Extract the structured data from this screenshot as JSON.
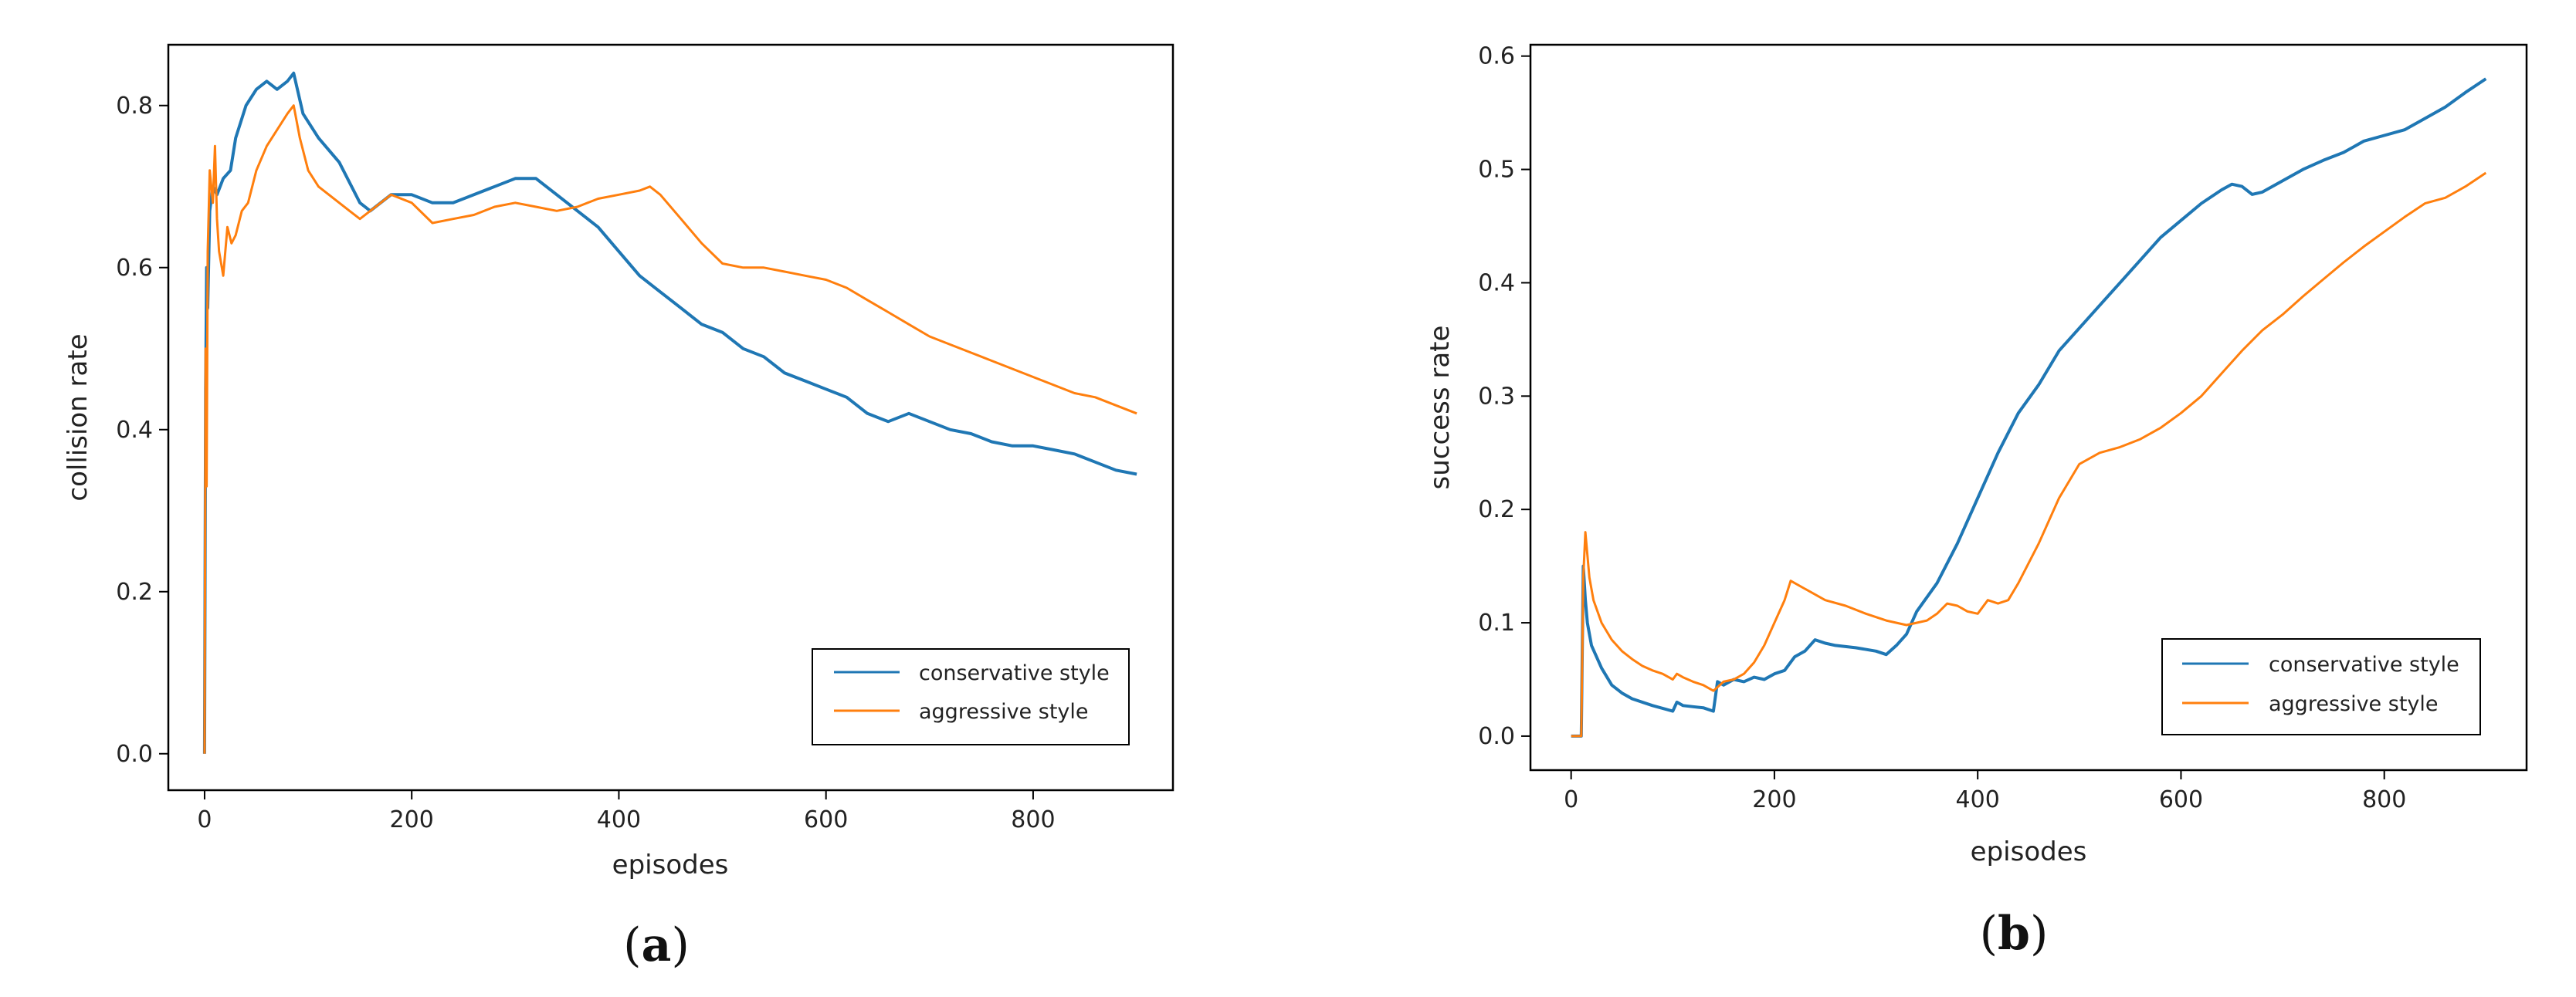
{
  "chart_data": [
    {
      "type": "line",
      "panel": "a",
      "caption": {
        "open": "(",
        "letter": "a",
        "close": ")"
      },
      "xlabel": "episodes",
      "ylabel": "collision rate",
      "xlim": [
        -35,
        935
      ],
      "ylim": [
        -0.045,
        0.875
      ],
      "xticks": [
        0,
        200,
        400,
        600,
        800
      ],
      "yticks": [
        0.0,
        0.2,
        0.4,
        0.6,
        0.8
      ],
      "ytick_labels": [
        "0.0",
        "0.2",
        "0.4",
        "0.6",
        "0.8"
      ],
      "grid": false,
      "legend_position": "lower-right",
      "series": [
        {
          "name": "conservative style",
          "color": "#1f77b4",
          "x": [
            0,
            1,
            2,
            3,
            5,
            8,
            12,
            18,
            25,
            30,
            40,
            50,
            60,
            70,
            80,
            86,
            95,
            110,
            130,
            150,
            160,
            180,
            200,
            220,
            240,
            260,
            280,
            300,
            320,
            340,
            360,
            380,
            400,
            420,
            440,
            460,
            480,
            500,
            520,
            540,
            560,
            580,
            600,
            620,
            640,
            660,
            680,
            700,
            720,
            740,
            760,
            780,
            800,
            820,
            840,
            860,
            880,
            900
          ],
          "y": [
            0.0,
            0.45,
            0.6,
            0.55,
            0.67,
            0.7,
            0.69,
            0.71,
            0.72,
            0.76,
            0.8,
            0.82,
            0.83,
            0.82,
            0.83,
            0.84,
            0.79,
            0.76,
            0.73,
            0.68,
            0.67,
            0.69,
            0.69,
            0.68,
            0.68,
            0.69,
            0.7,
            0.71,
            0.71,
            0.69,
            0.67,
            0.65,
            0.62,
            0.59,
            0.57,
            0.55,
            0.53,
            0.52,
            0.5,
            0.49,
            0.47,
            0.46,
            0.45,
            0.44,
            0.42,
            0.41,
            0.42,
            0.41,
            0.4,
            0.395,
            0.385,
            0.38,
            0.38,
            0.375,
            0.37,
            0.36,
            0.35,
            0.345
          ]
        },
        {
          "name": "aggressive style",
          "color": "#ff7f0e",
          "x": [
            0,
            1,
            2,
            3,
            5,
            8,
            10,
            12,
            14,
            18,
            22,
            26,
            30,
            36,
            42,
            50,
            60,
            70,
            80,
            86,
            92,
            100,
            110,
            120,
            130,
            140,
            150,
            160,
            170,
            180,
            200,
            220,
            240,
            260,
            280,
            300,
            320,
            340,
            360,
            380,
            400,
            420,
            430,
            440,
            460,
            480,
            500,
            520,
            540,
            560,
            580,
            600,
            620,
            640,
            660,
            680,
            700,
            720,
            740,
            760,
            780,
            800,
            820,
            840,
            860,
            880,
            900
          ],
          "y": [
            0.0,
            0.5,
            0.33,
            0.62,
            0.72,
            0.68,
            0.75,
            0.66,
            0.62,
            0.59,
            0.65,
            0.63,
            0.64,
            0.67,
            0.68,
            0.72,
            0.75,
            0.77,
            0.79,
            0.8,
            0.76,
            0.72,
            0.7,
            0.69,
            0.68,
            0.67,
            0.66,
            0.67,
            0.68,
            0.69,
            0.68,
            0.655,
            0.66,
            0.665,
            0.675,
            0.68,
            0.675,
            0.67,
            0.675,
            0.685,
            0.69,
            0.695,
            0.7,
            0.69,
            0.66,
            0.63,
            0.605,
            0.6,
            0.6,
            0.595,
            0.59,
            0.585,
            0.575,
            0.56,
            0.545,
            0.53,
            0.515,
            0.505,
            0.495,
            0.485,
            0.475,
            0.465,
            0.455,
            0.445,
            0.44,
            0.43,
            0.42
          ]
        }
      ]
    },
    {
      "type": "line",
      "panel": "b",
      "caption": {
        "open": "(",
        "letter": "b",
        "close": ")"
      },
      "xlabel": "episodes",
      "ylabel": "success rate",
      "xlim": [
        -40,
        940
      ],
      "ylim": [
        -0.03,
        0.61
      ],
      "xticks": [
        0,
        200,
        400,
        600,
        800
      ],
      "yticks": [
        0.0,
        0.1,
        0.2,
        0.3,
        0.4,
        0.5,
        0.6
      ],
      "ytick_labels": [
        "0.0",
        "0.1",
        "0.2",
        "0.3",
        "0.4",
        "0.5",
        "0.6"
      ],
      "grid": false,
      "legend_position": "lower-right",
      "series": [
        {
          "name": "conservative style",
          "color": "#1f77b4",
          "x": [
            0,
            5,
            10,
            12,
            14,
            16,
            20,
            30,
            40,
            50,
            60,
            80,
            100,
            104,
            110,
            120,
            130,
            140,
            144,
            150,
            160,
            170,
            180,
            190,
            200,
            210,
            220,
            230,
            240,
            250,
            260,
            280,
            300,
            310,
            320,
            330,
            340,
            360,
            380,
            400,
            420,
            440,
            460,
            480,
            500,
            520,
            540,
            560,
            580,
            600,
            620,
            640,
            650,
            660,
            670,
            680,
            700,
            720,
            740,
            760,
            780,
            800,
            820,
            840,
            860,
            880,
            900
          ],
          "y": [
            0.0,
            0.0,
            0.0,
            0.15,
            0.12,
            0.1,
            0.08,
            0.06,
            0.045,
            0.038,
            0.033,
            0.027,
            0.022,
            0.03,
            0.027,
            0.026,
            0.025,
            0.022,
            0.048,
            0.045,
            0.05,
            0.048,
            0.052,
            0.05,
            0.055,
            0.058,
            0.07,
            0.075,
            0.085,
            0.082,
            0.08,
            0.078,
            0.075,
            0.072,
            0.08,
            0.09,
            0.11,
            0.135,
            0.17,
            0.21,
            0.25,
            0.285,
            0.31,
            0.34,
            0.36,
            0.38,
            0.4,
            0.42,
            0.44,
            0.455,
            0.47,
            0.482,
            0.487,
            0.485,
            0.478,
            0.48,
            0.49,
            0.5,
            0.508,
            0.515,
            0.525,
            0.53,
            0.535,
            0.545,
            0.555,
            0.568,
            0.58
          ]
        },
        {
          "name": "aggressive style",
          "color": "#ff7f0e",
          "x": [
            0,
            5,
            10,
            12,
            14,
            16,
            18,
            22,
            30,
            40,
            50,
            60,
            70,
            80,
            90,
            100,
            104,
            110,
            120,
            130,
            140,
            150,
            160,
            170,
            180,
            190,
            200,
            210,
            216,
            230,
            250,
            270,
            290,
            310,
            330,
            350,
            360,
            370,
            380,
            390,
            400,
            410,
            420,
            430,
            440,
            460,
            480,
            500,
            520,
            540,
            560,
            580,
            600,
            620,
            640,
            660,
            680,
            700,
            720,
            740,
            760,
            780,
            800,
            820,
            840,
            860,
            880,
            900
          ],
          "y": [
            0.0,
            0.0,
            0.0,
            0.14,
            0.18,
            0.16,
            0.14,
            0.12,
            0.1,
            0.085,
            0.075,
            0.068,
            0.062,
            0.058,
            0.055,
            0.05,
            0.055,
            0.052,
            0.048,
            0.045,
            0.04,
            0.048,
            0.05,
            0.055,
            0.065,
            0.08,
            0.1,
            0.12,
            0.137,
            0.13,
            0.12,
            0.115,
            0.108,
            0.102,
            0.098,
            0.102,
            0.108,
            0.117,
            0.115,
            0.11,
            0.108,
            0.12,
            0.117,
            0.12,
            0.135,
            0.17,
            0.21,
            0.24,
            0.25,
            0.255,
            0.262,
            0.272,
            0.285,
            0.3,
            0.32,
            0.34,
            0.358,
            0.372,
            0.388,
            0.403,
            0.418,
            0.432,
            0.445,
            0.458,
            0.47,
            0.475,
            0.485,
            0.497
          ]
        }
      ]
    }
  ]
}
